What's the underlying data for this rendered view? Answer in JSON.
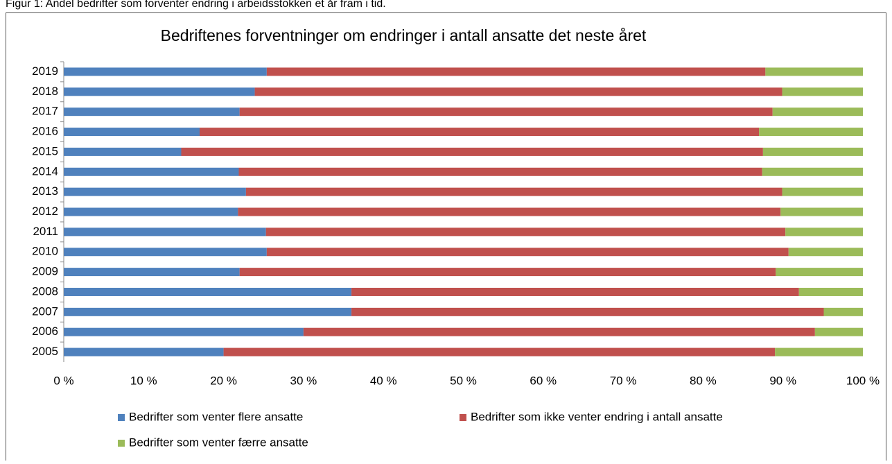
{
  "caption": "Figur 1: Andel bedrifter som forventer endring i arbeidsstokken et år fram i tid.",
  "chart_data": {
    "type": "stacked-barh",
    "title": "Bedriftenes forventninger om endringer i antall ansatte det neste året",
    "categories": [
      "2019",
      "2018",
      "2017",
      "2016",
      "2015",
      "2014",
      "2013",
      "2012",
      "2011",
      "2010",
      "2009",
      "2008",
      "2007",
      "2006",
      "2005"
    ],
    "series": [
      {
        "name": "Bedrifter som venter flere ansatte",
        "color": "#4f81bd",
        "values": [
          25.4,
          23.9,
          22.0,
          17.0,
          14.7,
          21.9,
          22.8,
          21.8,
          25.3,
          25.4,
          22.0,
          36.0,
          36.0,
          30.0,
          20.0
        ]
      },
      {
        "name": "Bedrifter som ikke venter endring i antall ansatte",
        "color": "#c0504d",
        "values": [
          62.4,
          66.0,
          66.7,
          70.0,
          72.8,
          65.5,
          67.1,
          67.9,
          65.0,
          65.3,
          67.1,
          56.0,
          59.1,
          64.0,
          69.0
        ]
      },
      {
        "name": "Bedrifter som venter færre ansatte",
        "color": "#9bbb59",
        "values": [
          12.2,
          10.1,
          11.3,
          13.0,
          12.5,
          12.6,
          10.1,
          10.3,
          9.7,
          9.3,
          10.9,
          8.0,
          4.9,
          6.0,
          11.0
        ]
      }
    ],
    "xlim": [
      0,
      100
    ],
    "xticks": [
      {
        "value": 0,
        "label": "0 %"
      },
      {
        "value": 10,
        "label": "10 %"
      },
      {
        "value": 20,
        "label": "20 %"
      },
      {
        "value": 30,
        "label": "30 %"
      },
      {
        "value": 40,
        "label": "40 %"
      },
      {
        "value": 50,
        "label": "50 %"
      },
      {
        "value": 60,
        "label": "60 %"
      },
      {
        "value": 70,
        "label": "70 %"
      },
      {
        "value": 80,
        "label": "80 %"
      },
      {
        "value": 90,
        "label": "90 %"
      },
      {
        "value": 100,
        "label": "100 %"
      }
    ],
    "grid": false
  }
}
